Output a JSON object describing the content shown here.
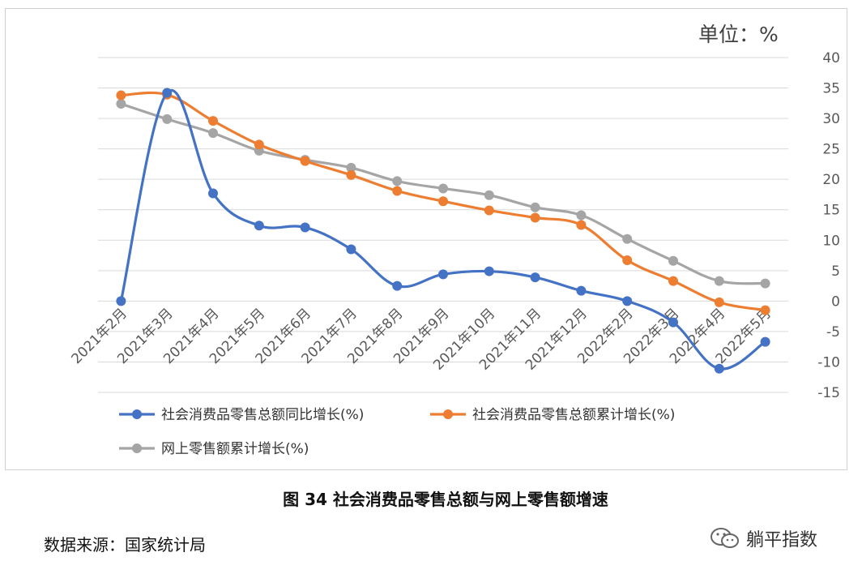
{
  "chart_data": {
    "type": "line",
    "unit_label": "单位：%",
    "categories": [
      "2021年2月",
      "2021年3月",
      "2021年4月",
      "2021年5月",
      "2021年6月",
      "2021年7月",
      "2021年8月",
      "2021年9月",
      "2021年10月",
      "2021年11月",
      "2021年12月",
      "2022年2月",
      "2022年3月",
      "2022年4月",
      "2022年5月"
    ],
    "series": [
      {
        "name": "社会消费品零售总额同比增长(%)",
        "color": "#4472C4",
        "values": [
          0,
          34.2,
          17.7,
          12.4,
          12.1,
          8.5,
          2.5,
          4.4,
          4.9,
          3.9,
          1.7,
          0,
          -3.5,
          -11.1,
          -6.7
        ]
      },
      {
        "name": "社会消费品零售总额累计增长(%)",
        "color": "#ED7D31",
        "values": [
          33.8,
          33.9,
          29.6,
          25.7,
          23.0,
          20.7,
          18.1,
          16.4,
          14.9,
          13.7,
          12.5,
          6.7,
          3.3,
          -0.2,
          -1.5
        ]
      },
      {
        "name": "网上零售额累计增长(%)",
        "color": "#A5A5A5",
        "values": [
          32.4,
          29.9,
          27.6,
          24.7,
          23.2,
          21.9,
          19.7,
          18.5,
          17.4,
          15.4,
          14.1,
          10.2,
          6.6,
          3.3,
          2.9
        ]
      }
    ],
    "ylim": [
      -15,
      40
    ],
    "yticks": [
      40,
      35,
      30,
      25,
      20,
      15,
      10,
      5,
      0,
      -5,
      -10,
      -15
    ],
    "grid": true,
    "legend_position": "bottom",
    "title": "图  34  社会消费品零售总额与网上零售额增速"
  },
  "source_note": "数据来源：国家统计局",
  "watermark": "躺平指数"
}
